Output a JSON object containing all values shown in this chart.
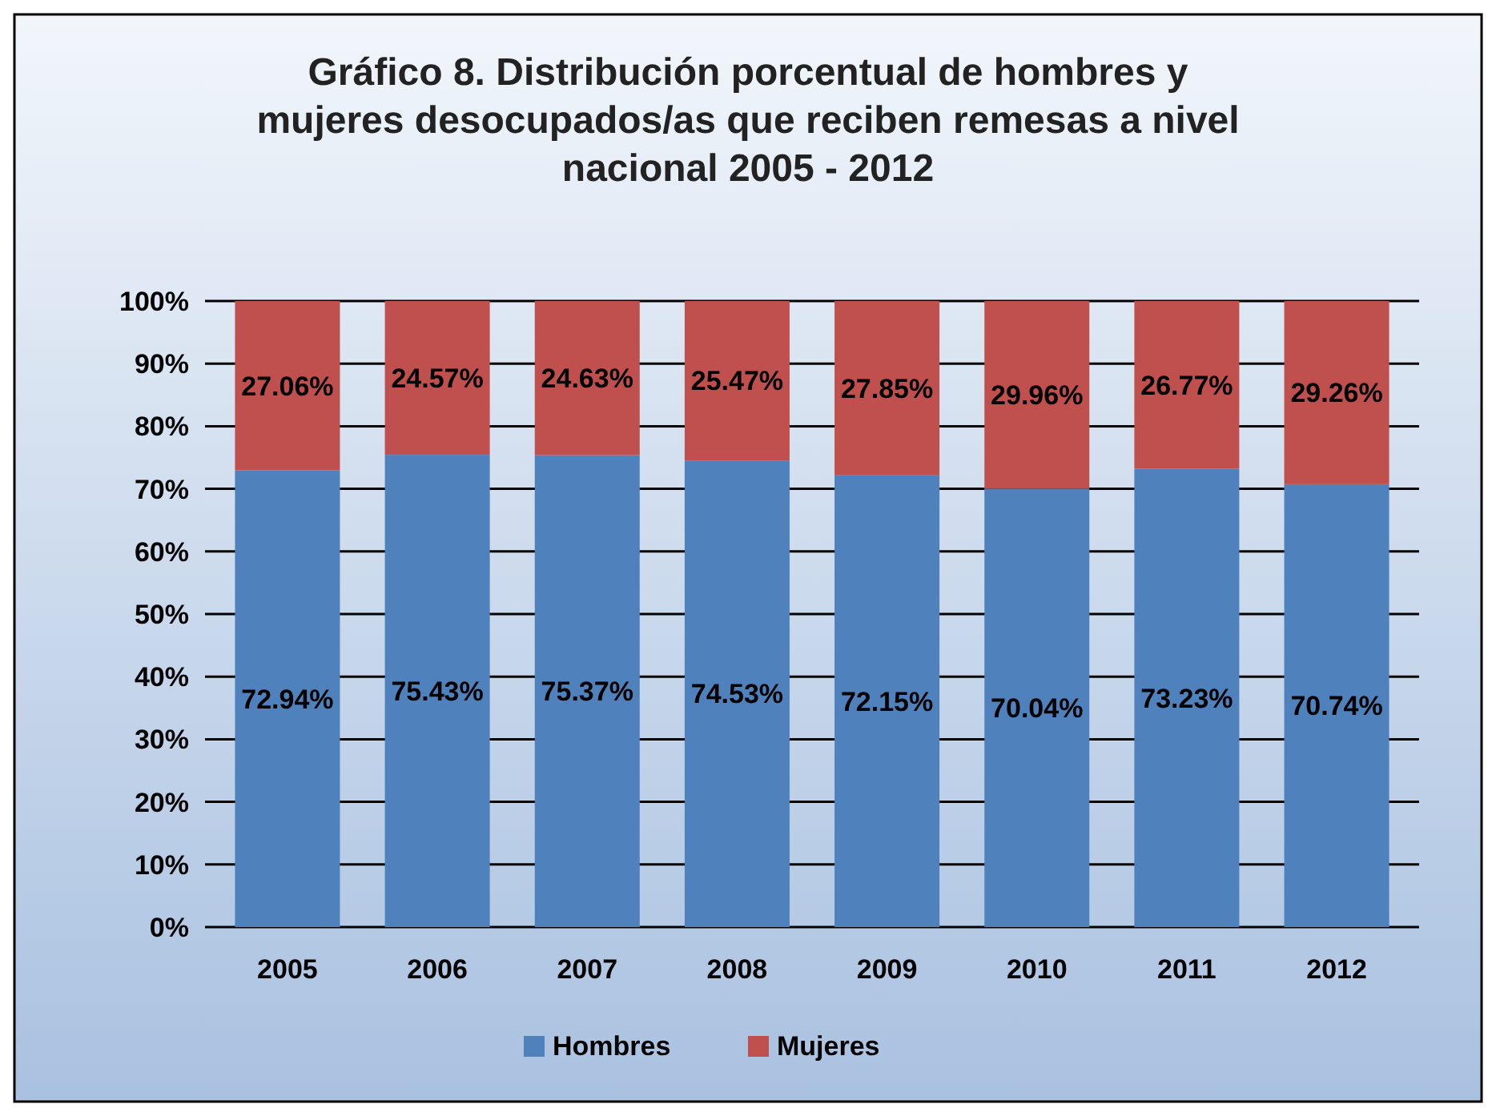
{
  "chart_data": {
    "type": "bar",
    "title": "Gráfico 8. Distribución porcentual de hombres y mujeres desocupados/as que reciben remesas a nivel nacional 2005 - 2012",
    "categories": [
      "2005",
      "2006",
      "2007",
      "2008",
      "2009",
      "2010",
      "2011",
      "2012"
    ],
    "stacked": true,
    "series": [
      {
        "name": "Hombres",
        "color": "#4f81bd",
        "values": [
          72.94,
          75.43,
          75.37,
          74.53,
          72.15,
          70.04,
          73.23,
          70.74
        ],
        "value_labels": [
          "72.94%",
          "75.43%",
          "75.37%",
          "74.53%",
          "72.15%",
          "70.04%",
          "73.23%",
          "70.74%"
        ]
      },
      {
        "name": "Mujeres",
        "color": "#c0504d",
        "values": [
          27.06,
          24.57,
          24.63,
          25.47,
          27.85,
          29.96,
          26.77,
          29.26
        ],
        "value_labels": [
          "27.06%",
          "24.57%",
          "24.63%",
          "25.47%",
          "27.85%",
          "29.96%",
          "26.77%",
          "29.26%"
        ]
      }
    ],
    "ylim": [
      0,
      100
    ],
    "yticks": [
      {
        "value": 0,
        "label": "0%"
      },
      {
        "value": 10,
        "label": "10%"
      },
      {
        "value": 20,
        "label": "20%"
      },
      {
        "value": 30,
        "label": "30%"
      },
      {
        "value": 40,
        "label": "40%"
      },
      {
        "value": 50,
        "label": "50%"
      },
      {
        "value": 60,
        "label": "60%"
      },
      {
        "value": 70,
        "label": "70%"
      },
      {
        "value": 80,
        "label": "80%"
      },
      {
        "value": 90,
        "label": "90%"
      },
      {
        "value": 100,
        "label": "100%"
      }
    ],
    "grid": "y",
    "legend": "bottom"
  }
}
